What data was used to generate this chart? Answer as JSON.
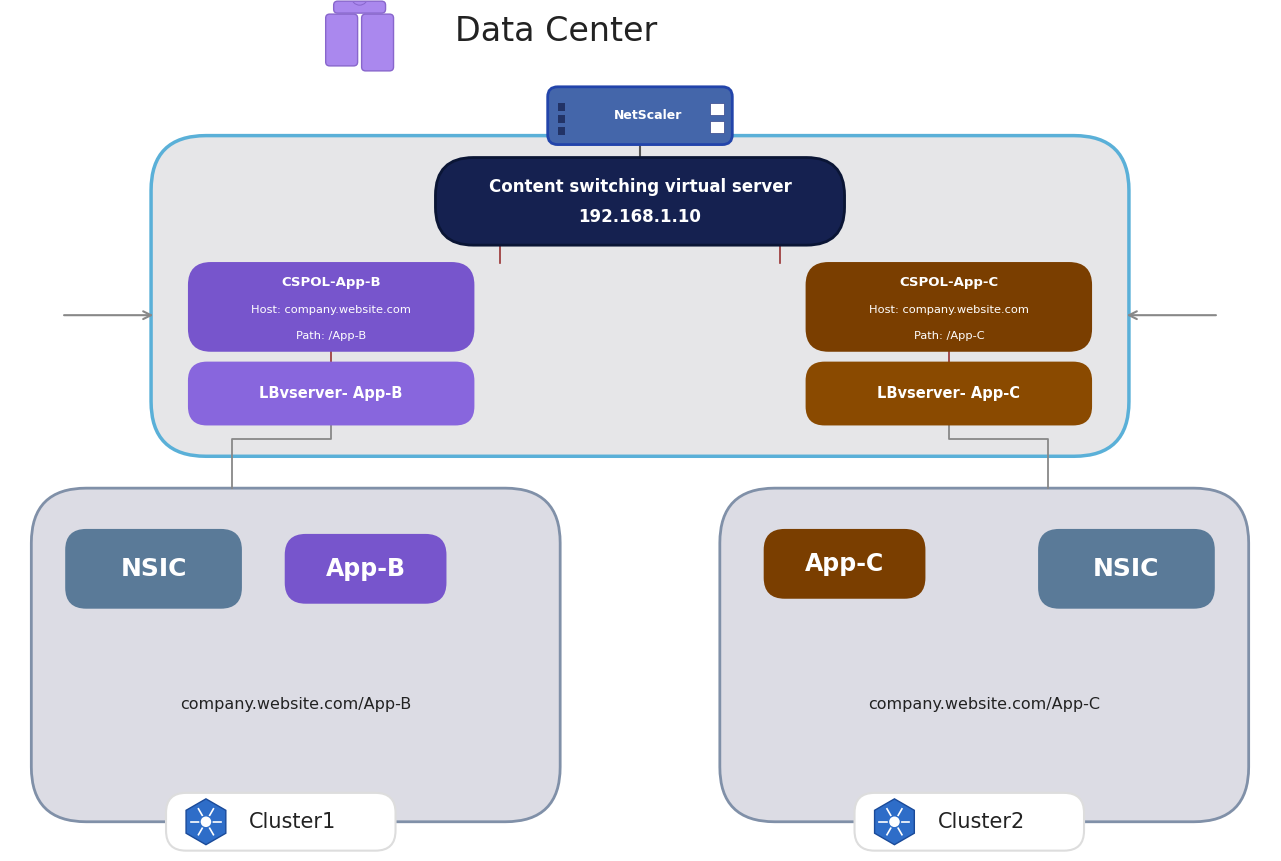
{
  "title": "Data Center",
  "bg_color": "#ffffff",
  "netscaler_label": "NetScaler",
  "cs_vserver_line1": "Content switching virtual server",
  "cs_vserver_line2": "192.168.1.10",
  "cs_vserver_bg": "#152150",
  "cs_vserver_text": "#ffffff",
  "outer_box_bg": "#e6e6e8",
  "outer_box_border": "#5ab0d8",
  "cspol_b_title": "CSPOL-App-B",
  "cspol_b_host": "Host: company.website.com",
  "cspol_b_path": "Path: /App-B",
  "cspol_b_bg": "#7755cc",
  "cspol_b_text": "#ffffff",
  "cspol_c_title": "CSPOL-App-C",
  "cspol_c_host": "Host: company.website.com",
  "cspol_c_path": "Path: /App-C",
  "cspol_c_bg": "#7a3e00",
  "cspol_c_text": "#ffffff",
  "lb_b_label": "LBvserver- App-B",
  "lb_b_bg": "#8866dd",
  "lb_b_text": "#ffffff",
  "lb_c_label": "LBvserver- App-C",
  "lb_c_bg": "#8a4a00",
  "lb_c_text": "#ffffff",
  "cluster1_bg": "#dcdce4",
  "cluster1_border": "#8090a8",
  "cluster1_url": "company.website.com/App-B",
  "cluster1_label": "Cluster1",
  "cluster2_bg": "#dcdce4",
  "cluster2_border": "#8090a8",
  "cluster2_url": "company.website.com/App-C",
  "cluster2_label": "Cluster2",
  "nsic_bg": "#5a7a98",
  "nsic_text": "#ffffff",
  "nsic_label": "NSIC",
  "app_b_bg": "#7755cc",
  "app_b_text": "#ffffff",
  "app_b_label": "App-B",
  "app_c_bg": "#7a3e00",
  "app_c_text": "#ffffff",
  "app_c_label": "App-C",
  "line_color_red": "#993333",
  "arrow_color": "#888888",
  "connector_color": "#888888",
  "ns_line_color": "#555555"
}
